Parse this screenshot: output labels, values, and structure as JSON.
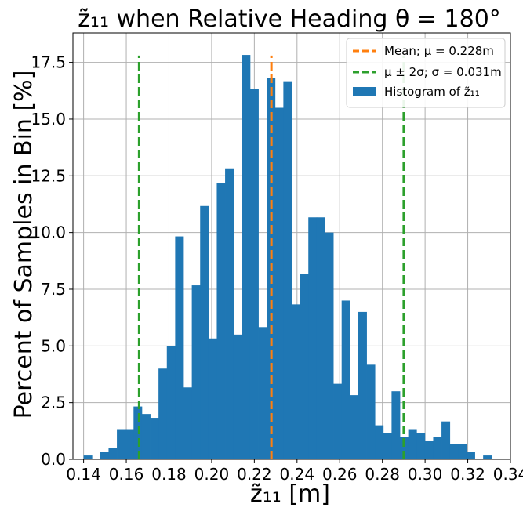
{
  "chart_data": {
    "type": "bar",
    "title": "z̃₁₁ when Relative Heading θ = 180°",
    "xlabel": "z̃₁₁ [m]",
    "ylabel": "Percent of Samples in Bin [%]",
    "xlim": [
      0.135,
      0.34
    ],
    "ylim": [
      0,
      18.8
    ],
    "xticks": [
      "0.14",
      "0.16",
      "0.18",
      "0.20",
      "0.22",
      "0.24",
      "0.26",
      "0.28",
      "0.30",
      "0.32",
      "0.34"
    ],
    "xtick_values": [
      0.14,
      0.16,
      0.18,
      0.2,
      0.22,
      0.24,
      0.26,
      0.28,
      0.3,
      0.32,
      0.34
    ],
    "yticks": [
      "0.0",
      "2.5",
      "5.0",
      "7.5",
      "10.0",
      "12.5",
      "15.0",
      "17.5"
    ],
    "ytick_values": [
      0,
      2.5,
      5,
      7.5,
      10,
      12.5,
      15,
      17.5
    ],
    "grid": true,
    "legend_position": "top-right",
    "bin_start": 0.14,
    "bin_width": 0.0039,
    "values": [
      0.17,
      0,
      0.33,
      0.5,
      1.33,
      1.33,
      2.33,
      2.0,
      1.83,
      4.0,
      5.0,
      9.83,
      3.17,
      7.67,
      11.17,
      5.33,
      12.17,
      12.83,
      5.5,
      17.83,
      16.33,
      5.83,
      16.83,
      15.5,
      16.67,
      6.83,
      8.17,
      10.67,
      10.67,
      10.0,
      3.33,
      7.0,
      2.83,
      6.5,
      4.17,
      1.5,
      1.17,
      3.0,
      1.0,
      1.33,
      1.17,
      0.83,
      1.0,
      1.67,
      0.67,
      0.67,
      0.33,
      0,
      0.17
    ],
    "mean": 0.228,
    "sigma": 0.031,
    "lines_top": 17.8,
    "legend": {
      "mean_label": "Mean; μ = 0.228m",
      "band_label": "μ ± 2σ; σ = 0.031m",
      "hist_label": "Histogram of z̃₁₁"
    },
    "colors": {
      "bars": "#1f77b4",
      "mean": "#ff7f0e",
      "band": "#2ca02c",
      "grid": "#b0b0b0"
    }
  }
}
